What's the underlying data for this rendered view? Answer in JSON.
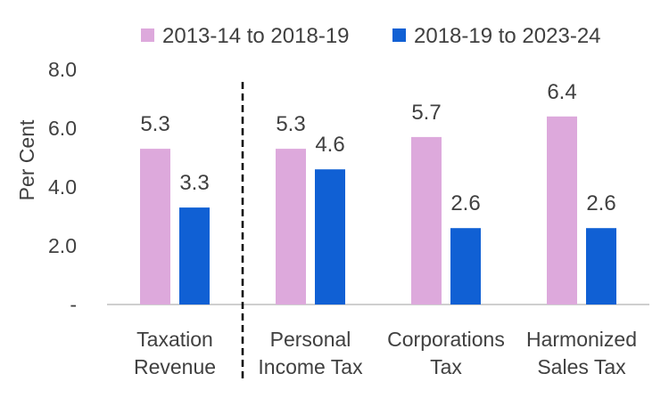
{
  "chart_data": {
    "type": "bar",
    "categories": [
      [
        "Taxation",
        "Revenue"
      ],
      [
        "Personal",
        "Income Tax"
      ],
      [
        "Corporations",
        "Tax"
      ],
      [
        "Harmonized",
        "Sales Tax"
      ]
    ],
    "series": [
      {
        "name": "2013-14 to 2018-19",
        "color": "#dda9dc",
        "values": [
          5.3,
          5.3,
          5.7,
          6.4
        ],
        "labels": [
          "5.3",
          "5.3",
          "5.7",
          "6.4"
        ]
      },
      {
        "name": "2018-19 to 2023-24",
        "color": "#1060d4",
        "values": [
          3.3,
          4.6,
          2.6,
          2.6
        ],
        "labels": [
          "3.3",
          "4.6",
          "2.6",
          "2.6"
        ]
      }
    ],
    "ylabel": "Per Cent",
    "ylim": [
      0,
      8
    ],
    "yticks": [
      0,
      2,
      4,
      6,
      8
    ],
    "ytick_labels": [
      "-",
      "2.0",
      "4.0",
      "6.0",
      "8.0"
    ],
    "grid": false,
    "legend": "top",
    "separator_after_category": 0
  }
}
